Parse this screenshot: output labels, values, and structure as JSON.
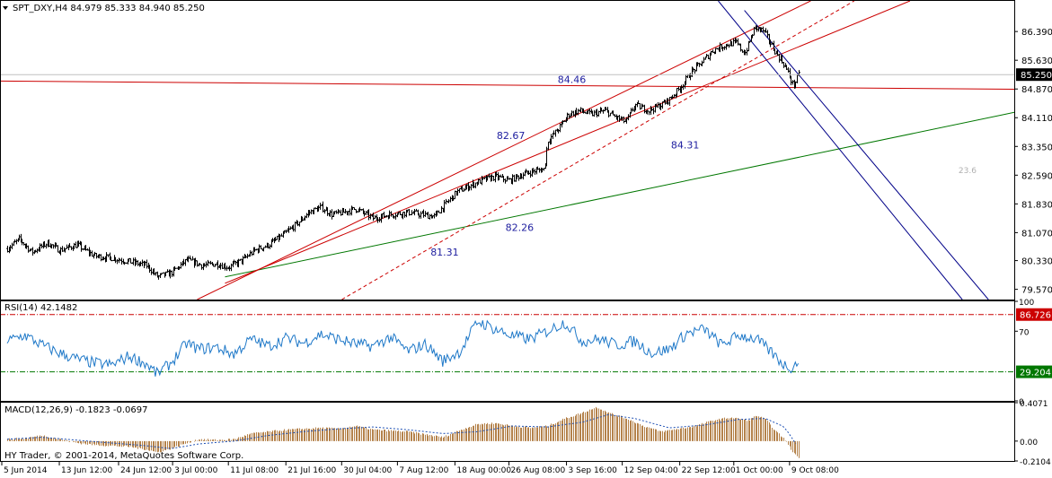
{
  "window": {
    "header": "SPT_DXY,H4  84.979 85.333 84.940 85.250",
    "footer": "HY Trader, © 2001-2014, MetaQuotes Software Corp."
  },
  "chart_data": [
    {
      "type": "candlestick",
      "panel": "price",
      "symbol": "SPT_DXY",
      "timeframe": "H4",
      "ohlc_last": {
        "open": 84.979,
        "high": 85.333,
        "low": 84.94,
        "close": 85.25
      },
      "current_price_label": "85.250",
      "ylim": [
        79.3,
        87.2
      ],
      "y_ticks": [
        "86.390",
        "85.630",
        "84.870",
        "84.110",
        "83.350",
        "82.590",
        "81.830",
        "81.070",
        "80.330",
        "79.570"
      ],
      "x_ticks": [
        "5 Jun 2014",
        "13 Jun 12:00",
        "24 Jun 12:00",
        "3 Jul 00:00",
        "11 Jul 08:00",
        "21 Jul 16:00",
        "30 Jul 04:00",
        "7 Aug 12:00",
        "18 Aug 00:00",
        "26 Aug 08:00",
        "3 Sep 16:00",
        "12 Sep 04:00",
        "22 Sep 12:00",
        "1 Oct 00:00",
        "9 Oct 08:00"
      ],
      "close_path": [
        [
          0,
          80.65
        ],
        [
          0.7,
          80.9
        ],
        [
          1.4,
          80.55
        ],
        [
          2.3,
          80.8
        ],
        [
          3,
          80.6
        ],
        [
          4,
          80.75
        ],
        [
          5,
          80.45
        ],
        [
          6,
          80.4
        ],
        [
          7,
          80.3
        ],
        [
          8,
          80.2
        ],
        [
          8.6,
          79.9
        ],
        [
          9.4,
          80.0
        ],
        [
          10.3,
          80.35
        ],
        [
          11.2,
          80.2
        ],
        [
          12,
          80.25
        ],
        [
          12.7,
          80.15
        ],
        [
          13.5,
          80.35
        ],
        [
          14.2,
          80.6
        ],
        [
          15,
          80.75
        ],
        [
          15.8,
          81.0
        ],
        [
          16.6,
          81.3
        ],
        [
          17.3,
          81.6
        ],
        [
          18,
          81.75
        ],
        [
          18.6,
          81.55
        ],
        [
          19.2,
          81.6
        ],
        [
          20,
          81.7
        ],
        [
          21,
          81.45
        ],
        [
          22,
          81.55
        ],
        [
          23,
          81.6
        ],
        [
          23.8,
          81.55
        ],
        [
          24.5,
          81.5
        ],
        [
          25,
          81.75
        ],
        [
          25.8,
          82.15
        ],
        [
          26.5,
          82.3
        ],
        [
          27.2,
          82.45
        ],
        [
          28,
          82.55
        ],
        [
          28.8,
          82.45
        ],
        [
          29.5,
          82.6
        ],
        [
          30.2,
          82.7
        ],
        [
          30.8,
          82.75
        ],
        [
          31,
          83.5
        ],
        [
          31.6,
          83.8
        ],
        [
          32.2,
          84.2
        ],
        [
          32.8,
          84.3
        ],
        [
          33.5,
          84.2
        ],
        [
          34.3,
          84.3
        ],
        [
          35,
          84.1
        ],
        [
          35.5,
          84.0
        ],
        [
          36,
          84.45
        ],
        [
          36.8,
          84.3
        ],
        [
          37.5,
          84.45
        ],
        [
          38,
          84.6
        ],
        [
          38.6,
          84.9
        ],
        [
          39.2,
          85.3
        ],
        [
          39.8,
          85.55
        ],
        [
          40.5,
          85.9
        ],
        [
          41.3,
          86.05
        ],
        [
          41.8,
          86.1
        ],
        [
          42.3,
          85.8
        ],
        [
          42.9,
          86.5
        ],
        [
          43.4,
          86.4
        ],
        [
          44,
          85.9
        ],
        [
          44.6,
          85.5
        ],
        [
          45.1,
          84.95
        ],
        [
          45.4,
          85.25
        ]
      ],
      "annotations": [
        {
          "text": "84.46",
          "x": 32.4,
          "y": 85.03
        },
        {
          "text": "82.67",
          "x": 28.9,
          "y": 83.55
        },
        {
          "text": "84.31",
          "x": 38.9,
          "y": 83.3
        },
        {
          "text": "82.26",
          "x": 29.4,
          "y": 81.11
        },
        {
          "text": "81.31",
          "x": 25.1,
          "y": 80.46
        },
        {
          "text": "23.6",
          "x": 55.1,
          "y": 82.64
        }
      ],
      "trendlines": [
        {
          "color": "#cc0000",
          "style": "solid",
          "points": [
            [
              -0.4,
              85.08
            ],
            [
              58.5,
              84.86
            ]
          ]
        },
        {
          "color": "#007700",
          "style": "solid",
          "points": [
            [
              12.5,
              79.9
            ],
            [
              58.5,
              84.32
            ]
          ]
        },
        {
          "color": "#cc0000",
          "style": "solid",
          "points": [
            [
              10.9,
              79.3
            ],
            [
              46.1,
              87.2
            ]
          ]
        },
        {
          "color": "#cc0000",
          "style": "solid",
          "points": [
            [
              12.5,
              79.73
            ],
            [
              51.8,
              87.2
            ]
          ]
        },
        {
          "color": "#cc0000",
          "style": "dashed",
          "points": [
            [
              19.2,
              79.3
            ],
            [
              48.6,
              87.2
            ]
          ]
        },
        {
          "color": "#000088",
          "style": "solid",
          "points": [
            [
              40.8,
              87.2
            ],
            [
              54.8,
              79.3
            ]
          ]
        },
        {
          "color": "#000088",
          "style": "solid",
          "points": [
            [
              42.3,
              86.95
            ],
            [
              56.3,
              79.3
            ]
          ]
        }
      ]
    },
    {
      "type": "line",
      "panel": "indicator",
      "title": "RSI(14) 42.1482",
      "ylim": [
        0,
        100
      ],
      "y_ticks": [
        "100",
        "70",
        "0"
      ],
      "levels": [
        {
          "label": "86.726",
          "value": 86.726,
          "color": "#cc0000"
        },
        {
          "label": "29.204",
          "value": 29.204,
          "color": "#007700"
        }
      ],
      "series": [
        {
          "color": "#1e78c8",
          "values": [
            [
              0,
              60
            ],
            [
              1,
              66
            ],
            [
              2,
              56
            ],
            [
              3,
              48
            ],
            [
              4,
              42
            ],
            [
              5,
              38
            ],
            [
              6,
              36
            ],
            [
              7,
              45
            ],
            [
              8,
              37
            ],
            [
              8.6,
              27
            ],
            [
              9.4,
              38
            ],
            [
              10.3,
              58
            ],
            [
              11,
              52
            ],
            [
              12,
              54
            ],
            [
              13,
              47
            ],
            [
              14,
              62
            ],
            [
              15,
              55
            ],
            [
              16,
              63
            ],
            [
              17,
              58
            ],
            [
              18,
              67
            ],
            [
              19,
              62
            ],
            [
              20,
              57
            ],
            [
              21,
              55
            ],
            [
              22,
              64
            ],
            [
              23,
              50
            ],
            [
              24,
              57
            ],
            [
              25,
              40
            ],
            [
              26,
              50
            ],
            [
              27,
              80
            ],
            [
              28,
              72
            ],
            [
              29,
              65
            ],
            [
              30,
              62
            ],
            [
              31,
              70
            ],
            [
              32,
              79
            ],
            [
              33,
              60
            ],
            [
              34,
              62
            ],
            [
              35,
              56
            ],
            [
              36,
              60
            ],
            [
              37,
              48
            ],
            [
              38,
              52
            ],
            [
              39,
              68
            ],
            [
              40,
              72
            ],
            [
              41,
              56
            ],
            [
              42,
              66
            ],
            [
              43,
              62
            ],
            [
              44,
              46
            ],
            [
              44.6,
              36
            ],
            [
              45.1,
              33
            ],
            [
              45.4,
              42
            ]
          ]
        }
      ]
    },
    {
      "type": "bar",
      "panel": "indicator",
      "title": "MACD(12,26,9) -0.1823 -0.0697",
      "ylim": [
        -0.2104,
        0.4071
      ],
      "y_ticks": [
        "0.4071",
        "0.00",
        "-0.2104"
      ],
      "series": [
        {
          "name": "MACD",
          "color": "#b4824b",
          "values": [
            [
              0,
              0.02
            ],
            [
              1,
              0.03
            ],
            [
              2,
              0.06
            ],
            [
              3,
              0.02
            ],
            [
              4,
              -0.02
            ],
            [
              5,
              -0.04
            ],
            [
              6,
              -0.05
            ],
            [
              7,
              -0.06
            ],
            [
              8,
              -0.09
            ],
            [
              8.6,
              -0.12
            ],
            [
              9.4,
              -0.08
            ],
            [
              10.3,
              -0.02
            ],
            [
              11,
              0.02
            ],
            [
              12,
              0.01
            ],
            [
              13,
              0.02
            ],
            [
              14,
              0.08
            ],
            [
              15,
              0.1
            ],
            [
              16,
              0.12
            ],
            [
              17,
              0.13
            ],
            [
              18,
              0.14
            ],
            [
              19,
              0.13
            ],
            [
              20,
              0.16
            ],
            [
              21,
              0.12
            ],
            [
              22,
              0.11
            ],
            [
              23,
              0.1
            ],
            [
              24,
              0.07
            ],
            [
              25,
              0.04
            ],
            [
              26,
              0.12
            ],
            [
              27,
              0.18
            ],
            [
              28,
              0.19
            ],
            [
              29,
              0.16
            ],
            [
              30,
              0.14
            ],
            [
              31,
              0.16
            ],
            [
              32,
              0.24
            ],
            [
              33,
              0.3
            ],
            [
              33.8,
              0.36
            ],
            [
              34.5,
              0.3
            ],
            [
              35.5,
              0.24
            ],
            [
              36.5,
              0.16
            ],
            [
              37.5,
              0.1
            ],
            [
              38.5,
              0.13
            ],
            [
              39.5,
              0.16
            ],
            [
              40.5,
              0.22
            ],
            [
              41.5,
              0.25
            ],
            [
              42.5,
              0.22
            ],
            [
              43,
              0.27
            ],
            [
              43.5,
              0.23
            ],
            [
              44,
              0.12
            ],
            [
              44.6,
              0.02
            ],
            [
              45,
              -0.1
            ],
            [
              45.4,
              -0.18
            ]
          ]
        },
        {
          "name": "Signal",
          "color": "#1e50b4",
          "style": "dotted",
          "values": [
            [
              0,
              0.02
            ],
            [
              2,
              0.04
            ],
            [
              4,
              0.01
            ],
            [
              6,
              -0.02
            ],
            [
              8,
              -0.05
            ],
            [
              9.4,
              -0.08
            ],
            [
              11,
              -0.03
            ],
            [
              13,
              0.0
            ],
            [
              15,
              0.06
            ],
            [
              17,
              0.1
            ],
            [
              19,
              0.13
            ],
            [
              21,
              0.15
            ],
            [
              23,
              0.12
            ],
            [
              25,
              0.08
            ],
            [
              27,
              0.1
            ],
            [
              29,
              0.16
            ],
            [
              31,
              0.15
            ],
            [
              33,
              0.2
            ],
            [
              34.5,
              0.28
            ],
            [
              36,
              0.24
            ],
            [
              38,
              0.14
            ],
            [
              40,
              0.17
            ],
            [
              42,
              0.23
            ],
            [
              43.5,
              0.24
            ],
            [
              44.6,
              0.15
            ],
            [
              45.4,
              -0.07
            ]
          ]
        }
      ]
    }
  ]
}
